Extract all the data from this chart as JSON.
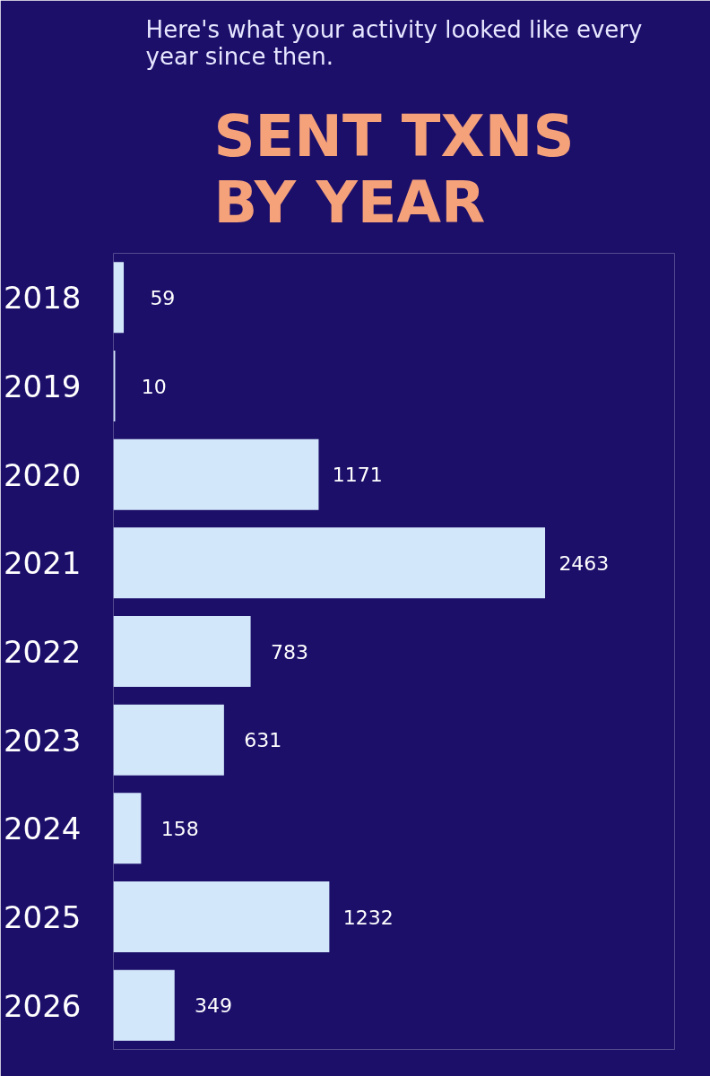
{
  "chart_data": {
    "type": "bar",
    "orientation": "horizontal",
    "title": "SENT TXNS\nBY YEAR",
    "subtitle": "Here's what your activity looked like every year since then.",
    "categories": [
      "2018",
      "2019",
      "2020",
      "2021",
      "2022",
      "2023",
      "2024",
      "2025",
      "2026"
    ],
    "values": [
      59,
      10,
      1171,
      2463,
      783,
      631,
      158,
      1232,
      349
    ],
    "color": "#d3e7fb",
    "data_labels": true,
    "grid": false
  }
}
